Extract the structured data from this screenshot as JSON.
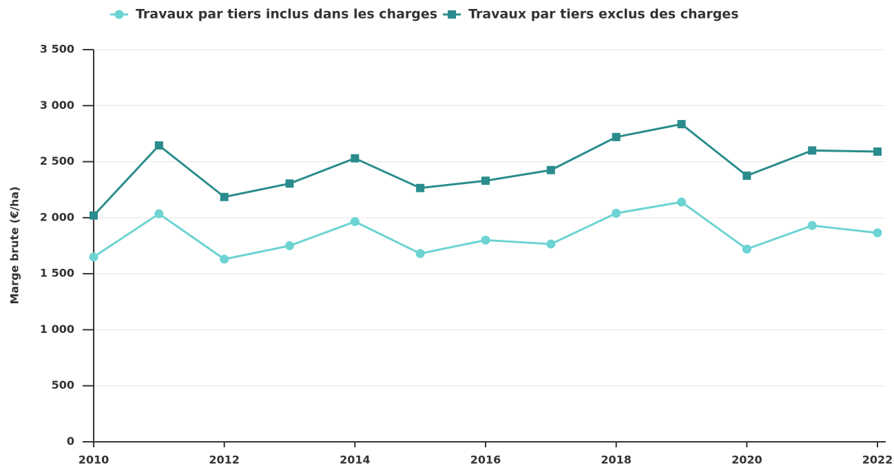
{
  "chart_data": {
    "type": "line",
    "y_label": "Marge brute (€/ha)",
    "x": [
      2010,
      2011,
      2012,
      2013,
      2014,
      2015,
      2016,
      2017,
      2018,
      2019,
      2020,
      2021,
      2022
    ],
    "xlim": [
      2010,
      2022
    ],
    "xticks": [
      2010,
      2012,
      2014,
      2016,
      2018,
      2020,
      2022
    ],
    "ylim": [
      0,
      3500
    ],
    "yticks": [
      0,
      500,
      {
        "value": 1000,
        "label": "1 000"
      },
      {
        "value": 1500,
        "label": "1 500"
      },
      {
        "value": 2000,
        "label": "2 000"
      },
      {
        "value": 2500,
        "label": "2 500"
      },
      {
        "value": 3000,
        "label": "3 000"
      },
      {
        "value": 3500,
        "label": "3 500"
      }
    ],
    "grid": true,
    "legend": "top",
    "series": [
      {
        "name": "Travaux par tiers inclus dans les charges",
        "color": "#6dd3d3",
        "marker": "circle",
        "values": [
          1650,
          2035,
          1630,
          1750,
          1965,
          1680,
          1800,
          1765,
          2040,
          2140,
          1720,
          1930,
          1865
        ]
      },
      {
        "name": "Travaux par tiers exclus des charges",
        "color": "#2a8c8c",
        "marker": "square",
        "values": [
          2020,
          2645,
          2185,
          2305,
          2530,
          2265,
          2330,
          2425,
          2720,
          2835,
          2375,
          2600,
          2590
        ]
      }
    ]
  }
}
